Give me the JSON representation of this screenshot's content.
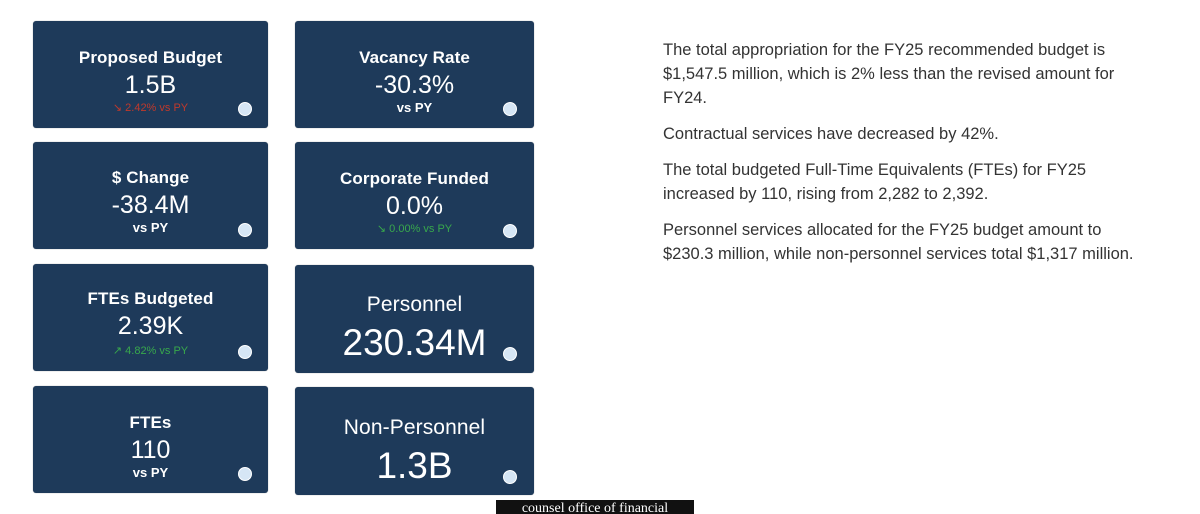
{
  "cards": {
    "proposed_budget": {
      "title": "Proposed Budget",
      "value": "1.5B",
      "trend": "↘ 2.42% vs PY"
    },
    "vacancy_rate": {
      "title": "Vacancy Rate",
      "value": "-30.3%",
      "sub": "vs PY"
    },
    "dollar_change": {
      "title": "$ Change",
      "value": "-38.4M",
      "sub": "vs PY"
    },
    "corporate_funded": {
      "title": "Corporate Funded",
      "value": "0.0%",
      "trend": "↘ 0.00% vs PY"
    },
    "ftes_budgeted": {
      "title": "FTEs Budgeted",
      "value": "2.39K",
      "trend": "↗ 4.82% vs PY"
    },
    "personnel": {
      "title": "Personnel",
      "value": "230.34M"
    },
    "ftes": {
      "title": "FTEs",
      "value": "110",
      "sub": "vs PY"
    },
    "non_personnel": {
      "title": "Non-Personnel",
      "value": "1.3B"
    }
  },
  "summary": {
    "p1": "The total appropriation for the FY25 recommended budget is $1,547.5 million, which is 2% less than the revised amount for FY24.",
    "p2": "Contractual services have decreased by 42%.",
    "p3": "The total budgeted Full-Time Equivalents (FTEs) for FY25 increased by 110, rising from 2,282 to 2,392.",
    "p4": "Personnel services allocated for the FY25 budget amount to $230.3 million, while non-personnel services total $1,317 million."
  },
  "caption": "counsel office of financial",
  "colors": {
    "card_bg": "#1e3a5a",
    "trend_negative": "#c0392b",
    "trend_positive": "#38a84c"
  }
}
